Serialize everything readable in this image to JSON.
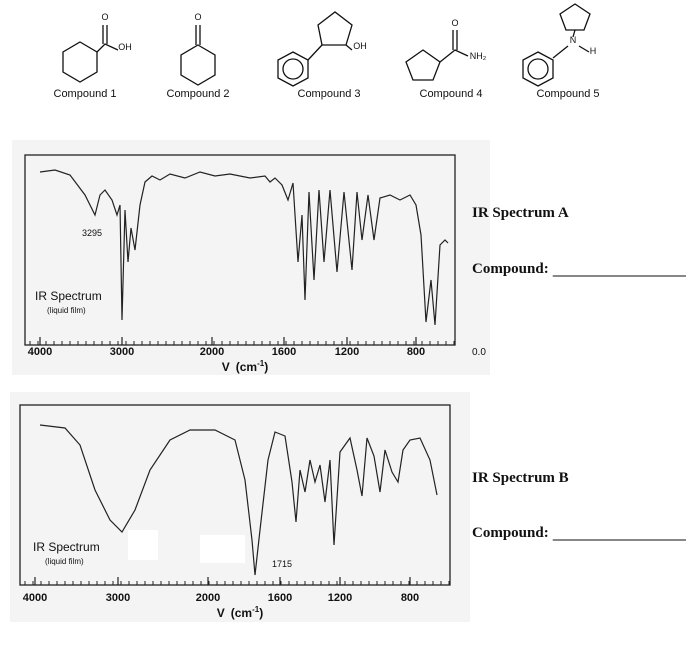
{
  "compounds": [
    {
      "label": "Compound 1",
      "atoms": [
        "O",
        "OH"
      ]
    },
    {
      "label": "Compound 2",
      "atoms": [
        "O"
      ]
    },
    {
      "label": "Compound 3",
      "atoms": [
        "OH"
      ]
    },
    {
      "label": "Compound 4",
      "atoms": [
        "O",
        "NH₂"
      ]
    },
    {
      "label": "Compound 5",
      "atoms": [
        "N",
        "H"
      ]
    }
  ],
  "spectra": [
    {
      "title": "IR Spectrum A",
      "answer_label": "Compound:",
      "inset_label": "IR Spectrum",
      "inset_sublabel": "(liquid film)",
      "peak_label": "3295",
      "x_tick_labels": [
        "4000",
        "3000",
        "2000",
        "1600",
        "1200",
        "800"
      ],
      "extra_label": "0.0",
      "axis_symbol": "V",
      "axis_unit": "(cm",
      "axis_exp": "-1",
      "axis_close": ")"
    },
    {
      "title": "IR Spectrum B",
      "answer_label": "Compound:",
      "inset_label": "IR Spectrum",
      "inset_sublabel": "(liquid film)",
      "peak_label": "1715",
      "x_tick_labels": [
        "4000",
        "3000",
        "2000",
        "1600",
        "1200",
        "800"
      ],
      "axis_symbol": "V",
      "axis_unit": "(cm",
      "axis_exp": "-1",
      "axis_close": ")"
    }
  ]
}
